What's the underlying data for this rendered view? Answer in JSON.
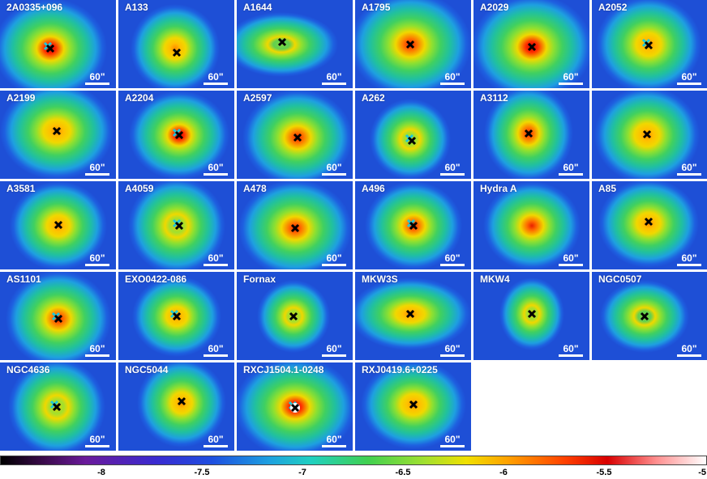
{
  "panels": [
    {
      "name": "2A0335+096",
      "scale": "60\""
    },
    {
      "name": "A133",
      "scale": "60\""
    },
    {
      "name": "A1644",
      "scale": "60\""
    },
    {
      "name": "A1795",
      "scale": "60\""
    },
    {
      "name": "A2029",
      "scale": "60\""
    },
    {
      "name": "A2052",
      "scale": "60\""
    },
    {
      "name": "A2199",
      "scale": "60\""
    },
    {
      "name": "A2204",
      "scale": "60\""
    },
    {
      "name": "A2597",
      "scale": "60\""
    },
    {
      "name": "A262",
      "scale": "60\""
    },
    {
      "name": "A3112",
      "scale": "60\""
    },
    {
      "name": "",
      "scale": "60\""
    },
    {
      "name": "A3581",
      "scale": "60\""
    },
    {
      "name": "A4059",
      "scale": "60\""
    },
    {
      "name": "A478",
      "scale": "60\""
    },
    {
      "name": "A496",
      "scale": "60\""
    },
    {
      "name": "Hydra A",
      "scale": "60\""
    },
    {
      "name": "A85",
      "scale": "60\""
    },
    {
      "name": "AS1101",
      "scale": "60\""
    },
    {
      "name": "EXO0422-086",
      "scale": "60\""
    },
    {
      "name": "Fornax",
      "scale": "60\""
    },
    {
      "name": "MKW3S",
      "scale": "60\""
    },
    {
      "name": "MKW4",
      "scale": "60\""
    },
    {
      "name": "NGC0507",
      "scale": "60\""
    },
    {
      "name": "NGC4636",
      "scale": "60\""
    },
    {
      "name": "NGC5044",
      "scale": "60\""
    },
    {
      "name": "RXCJ1504.1-0248",
      "scale": "60\""
    },
    {
      "name": "RXJ0419.6+0225",
      "scale": "60\""
    }
  ],
  "colorbar": {
    "ticks": [
      "-8",
      "-7.5",
      "-7",
      "-6.5",
      "-6",
      "-5.5",
      "-5"
    ],
    "tick_values": [
      -8,
      -7.5,
      -7,
      -6.5,
      -6,
      -5.5,
      -5
    ],
    "range": [
      -8.5,
      -5
    ]
  },
  "colors": {
    "background": "#1e4fd6",
    "core_hot": "#e00000",
    "mid": "#40d050",
    "outer": "#20b0e0",
    "marker": "#000000",
    "peak_marker": "#20c0d0"
  }
}
